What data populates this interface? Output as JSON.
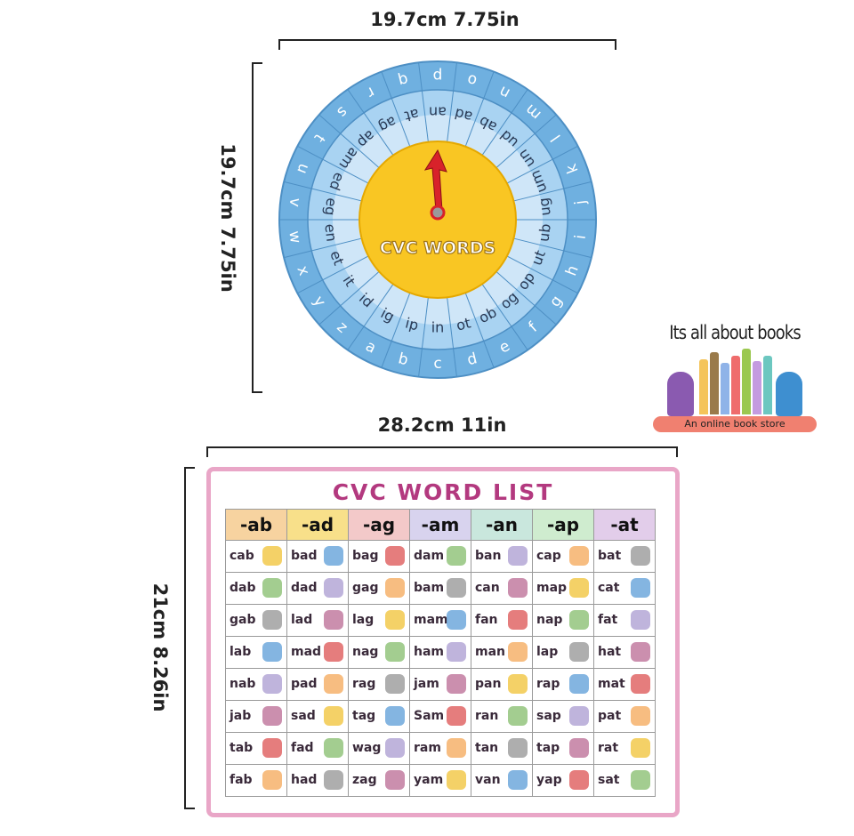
{
  "dimensions": {
    "wheel_width": "19.7cm 7.75in",
    "wheel_height": "19.7cm 7.75in",
    "board_width": "28.2cm 11in",
    "board_height": "21cm 8.26in"
  },
  "wheel": {
    "center_label": "CVC WORDS",
    "outer_letters": [
      "p",
      "o",
      "n",
      "m",
      "l",
      "k",
      "j",
      "i",
      "h",
      "g",
      "f",
      "e",
      "d",
      "c",
      "b",
      "a",
      "z",
      "y",
      "x",
      "w",
      "v",
      "u",
      "t",
      "s",
      "r",
      "q"
    ],
    "rimes": [
      "an",
      "ad",
      "ab",
      "ud",
      "un",
      "um",
      "ug",
      "ub",
      "ut",
      "op",
      "og",
      "ob",
      "ot",
      "in",
      "ip",
      "ig",
      "id",
      "it",
      "et",
      "en",
      "eg",
      "ed",
      "am",
      "ap",
      "ag",
      "at"
    ],
    "colors": {
      "outer": "#6fb0e0",
      "inner": "#a9d3f2",
      "center": "#f9c623",
      "arrow": "#d8222a"
    }
  },
  "logo": {
    "title": "Its all about books",
    "subtitle": "An online book store"
  },
  "board": {
    "title": "CVC WORD LIST",
    "title_color": "#b3397f",
    "headers": [
      "-ab",
      "-ad",
      "-ag",
      "-am",
      "-an",
      "-ap",
      "-at"
    ],
    "header_colors": [
      "#f7d3a0",
      "#f8e08a",
      "#f3c9c9",
      "#d8d3ee",
      "#c9e7dd",
      "#cfeccf",
      "#e2cdea"
    ],
    "rows": [
      [
        "cab",
        "bad",
        "bag",
        "dam",
        "ban",
        "cap",
        "bat"
      ],
      [
        "dab",
        "dad",
        "gag",
        "bam",
        "can",
        "map",
        "cat"
      ],
      [
        "gab",
        "lad",
        "lag",
        "mam",
        "fan",
        "nap",
        "fat"
      ],
      [
        "lab",
        "mad",
        "nag",
        "ham",
        "man",
        "lap",
        "hat"
      ],
      [
        "nab",
        "pad",
        "rag",
        "jam",
        "pan",
        "rap",
        "mat"
      ],
      [
        "jab",
        "sad",
        "tag",
        "Sam",
        "ran",
        "sap",
        "pat"
      ],
      [
        "tab",
        "fad",
        "wag",
        "ram",
        "tan",
        "tap",
        "rat"
      ],
      [
        "fab",
        "had",
        "zag",
        "yam",
        "van",
        "yap",
        "sat"
      ]
    ]
  }
}
